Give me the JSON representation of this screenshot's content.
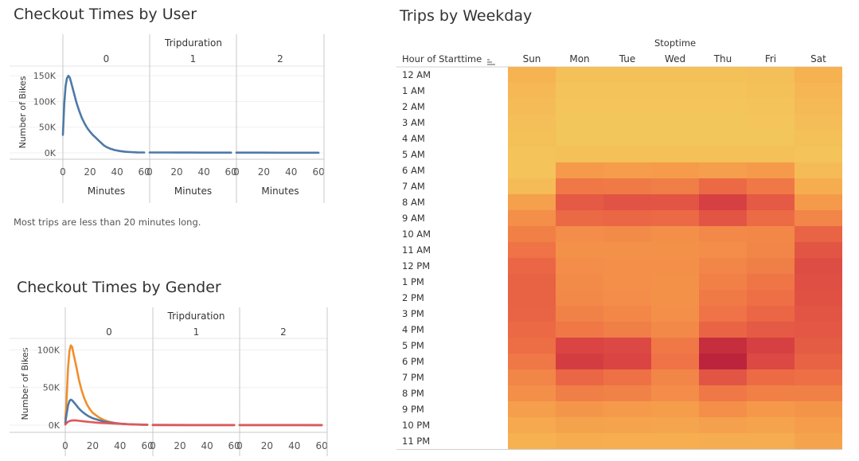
{
  "checkout_user": {
    "title": "Checkout Times by User",
    "note": "Most trips are less than 20 minutes long."
  },
  "checkout_gender": {
    "title": "Checkout Times by Gender"
  },
  "weekday": {
    "title": "Trips by Weekday",
    "column_group": "Stoptime",
    "row_header": "Hour of Starttime"
  },
  "colors": {
    "male": "#4e79a7",
    "female": "#f28e2b",
    "unknown": "#e15759",
    "grid": "#e6e6e6",
    "axis": "#c8c8c8"
  },
  "chart_data": [
    {
      "type": "line",
      "title": "Checkout Times by User",
      "column_header": "Tripduration",
      "panels": [
        "0",
        "1",
        "2"
      ],
      "xlabel": "Minutes",
      "ylabel": "Number of Bikes",
      "xticks": [
        0,
        20,
        40,
        60
      ],
      "yticks": [
        0,
        50000,
        100000,
        150000
      ],
      "ytick_labels": [
        "0K",
        "50K",
        "100K",
        "150K"
      ],
      "ylim": [
        0,
        158000
      ],
      "xlim": [
        0,
        64
      ],
      "series": [
        {
          "color": "#4e79a7",
          "panels": [
            [
              [
                0,
                35000
              ],
              [
                1,
                95000
              ],
              [
                2,
                130000
              ],
              [
                3,
                145000
              ],
              [
                4,
                150000
              ],
              [
                5,
                147000
              ],
              [
                6,
                138000
              ],
              [
                8,
                118000
              ],
              [
                10,
                98000
              ],
              [
                12,
                82000
              ],
              [
                14,
                68000
              ],
              [
                16,
                57000
              ],
              [
                18,
                48000
              ],
              [
                20,
                41000
              ],
              [
                22,
                35000
              ],
              [
                24,
                30000
              ],
              [
                26,
                25000
              ],
              [
                28,
                20000
              ],
              [
                30,
                15000
              ],
              [
                32,
                11500
              ],
              [
                35,
                8000
              ],
              [
                38,
                5500
              ],
              [
                42,
                3500
              ],
              [
                46,
                2200
              ],
              [
                50,
                1500
              ],
              [
                55,
                1000
              ],
              [
                60,
                700
              ]
            ],
            [
              [
                0,
                800
              ],
              [
                10,
                700
              ],
              [
                20,
                600
              ],
              [
                30,
                550
              ],
              [
                40,
                500
              ],
              [
                50,
                450
              ],
              [
                60,
                400
              ]
            ],
            [
              [
                0,
                500
              ],
              [
                10,
                450
              ],
              [
                20,
                400
              ],
              [
                30,
                380
              ],
              [
                40,
                350
              ],
              [
                50,
                330
              ],
              [
                60,
                300
              ]
            ]
          ]
        }
      ]
    },
    {
      "type": "line",
      "title": "Checkout Times by Gender",
      "column_header": "Tripduration",
      "panels": [
        "0",
        "1",
        "2"
      ],
      "ylabel": "Number of Bikes",
      "xticks": [
        0,
        20,
        40,
        60
      ],
      "yticks": [
        0,
        50000,
        100000
      ],
      "ytick_labels": [
        "0K",
        "50K",
        "100K"
      ],
      "ylim": [
        0,
        110000
      ],
      "xlim": [
        0,
        64
      ],
      "series": [
        {
          "color": "#f28e2b",
          "panels": [
            [
              [
                0,
                8000
              ],
              [
                1,
                35000
              ],
              [
                2,
                75000
              ],
              [
                3,
                98000
              ],
              [
                4,
                106000
              ],
              [
                5,
                104000
              ],
              [
                6,
                95000
              ],
              [
                8,
                78000
              ],
              [
                10,
                60000
              ],
              [
                12,
                46000
              ],
              [
                14,
                35000
              ],
              [
                16,
                27000
              ],
              [
                18,
                21000
              ],
              [
                20,
                16500
              ],
              [
                24,
                11000
              ],
              [
                28,
                7000
              ],
              [
                32,
                4500
              ],
              [
                36,
                3000
              ],
              [
                40,
                2000
              ],
              [
                45,
                1300
              ],
              [
                50,
                900
              ],
              [
                55,
                600
              ],
              [
                60,
                400
              ]
            ],
            [
              [
                0,
                300
              ],
              [
                30,
                250
              ],
              [
                60,
                200
              ]
            ],
            [
              [
                0,
                200
              ],
              [
                30,
                180
              ],
              [
                60,
                150
              ]
            ]
          ]
        },
        {
          "color": "#4e79a7",
          "panels": [
            [
              [
                0,
                3000
              ],
              [
                1,
                15000
              ],
              [
                2,
                26000
              ],
              [
                3,
                32000
              ],
              [
                4,
                34000
              ],
              [
                5,
                33000
              ],
              [
                6,
                31000
              ],
              [
                8,
                26500
              ],
              [
                10,
                22000
              ],
              [
                12,
                18500
              ],
              [
                14,
                15500
              ],
              [
                16,
                13000
              ],
              [
                18,
                11000
              ],
              [
                20,
                9200
              ],
              [
                24,
                7000
              ],
              [
                28,
                5000
              ],
              [
                32,
                3700
              ],
              [
                36,
                2800
              ],
              [
                40,
                2000
              ],
              [
                45,
                1400
              ],
              [
                50,
                1000
              ],
              [
                55,
                700
              ],
              [
                60,
                500
              ]
            ],
            [
              [
                0,
                300
              ],
              [
                30,
                250
              ],
              [
                60,
                200
              ]
            ],
            [
              [
                0,
                200
              ],
              [
                30,
                180
              ],
              [
                60,
                150
              ]
            ]
          ]
        },
        {
          "color": "#e15759",
          "panels": [
            [
              [
                0,
                1000
              ],
              [
                2,
                4500
              ],
              [
                4,
                6000
              ],
              [
                6,
                6500
              ],
              [
                8,
                6200
              ],
              [
                10,
                5800
              ],
              [
                14,
                5000
              ],
              [
                18,
                4200
              ],
              [
                22,
                3500
              ],
              [
                26,
                3000
              ],
              [
                30,
                2600
              ],
              [
                35,
                2200
              ],
              [
                40,
                1800
              ],
              [
                45,
                1400
              ],
              [
                50,
                1100
              ],
              [
                55,
                800
              ],
              [
                60,
                600
              ]
            ],
            [
              [
                0,
                100
              ],
              [
                60,
                80
              ]
            ],
            [
              [
                0,
                100
              ],
              [
                60,
                80
              ]
            ]
          ]
        }
      ]
    },
    {
      "type": "heatmap",
      "title": "Trips by Weekday",
      "column_header": "Stoptime",
      "row_header": "Hour of Starttime",
      "columns": [
        "Sun",
        "Mon",
        "Tue",
        "Wed",
        "Thu",
        "Fri",
        "Sat"
      ],
      "rows": [
        "12 AM",
        "1 AM",
        "2 AM",
        "3 AM",
        "4 AM",
        "5 AM",
        "6 AM",
        "7 AM",
        "8 AM",
        "9 AM",
        "10 AM",
        "11 AM",
        "12 PM",
        "1 PM",
        "2 PM",
        "3 PM",
        "4 PM",
        "5 PM",
        "6 PM",
        "7 PM",
        "8 PM",
        "9 PM",
        "10 PM",
        "11 PM"
      ],
      "scale_colors": [
        "#f1d362",
        "#f6b352",
        "#f59a4a",
        "#ee6f45",
        "#da4443",
        "#b8203b"
      ],
      "values": [
        [
          0.2,
          0.12,
          0.12,
          0.12,
          0.12,
          0.13,
          0.22
        ],
        [
          0.17,
          0.1,
          0.1,
          0.1,
          0.1,
          0.11,
          0.18
        ],
        [
          0.15,
          0.09,
          0.09,
          0.09,
          0.09,
          0.1,
          0.16
        ],
        [
          0.13,
          0.08,
          0.08,
          0.08,
          0.08,
          0.09,
          0.14
        ],
        [
          0.12,
          0.08,
          0.08,
          0.08,
          0.08,
          0.08,
          0.12
        ],
        [
          0.1,
          0.12,
          0.12,
          0.12,
          0.12,
          0.12,
          0.1
        ],
        [
          0.1,
          0.4,
          0.38,
          0.39,
          0.36,
          0.4,
          0.15
        ],
        [
          0.15,
          0.56,
          0.55,
          0.53,
          0.63,
          0.56,
          0.25
        ],
        [
          0.35,
          0.7,
          0.73,
          0.72,
          0.82,
          0.7,
          0.4
        ],
        [
          0.45,
          0.63,
          0.64,
          0.63,
          0.72,
          0.62,
          0.5
        ],
        [
          0.52,
          0.46,
          0.47,
          0.45,
          0.48,
          0.49,
          0.65
        ],
        [
          0.58,
          0.44,
          0.44,
          0.44,
          0.46,
          0.5,
          0.72
        ],
        [
          0.64,
          0.46,
          0.45,
          0.45,
          0.5,
          0.53,
          0.76
        ],
        [
          0.66,
          0.47,
          0.45,
          0.44,
          0.52,
          0.57,
          0.75
        ],
        [
          0.66,
          0.48,
          0.46,
          0.44,
          0.55,
          0.6,
          0.74
        ],
        [
          0.65,
          0.51,
          0.49,
          0.45,
          0.58,
          0.64,
          0.72
        ],
        [
          0.63,
          0.56,
          0.53,
          0.48,
          0.65,
          0.7,
          0.71
        ],
        [
          0.61,
          0.8,
          0.78,
          0.56,
          0.92,
          0.82,
          0.69
        ],
        [
          0.56,
          0.84,
          0.8,
          0.58,
          0.98,
          0.78,
          0.66
        ],
        [
          0.5,
          0.64,
          0.59,
          0.5,
          0.72,
          0.62,
          0.6
        ],
        [
          0.45,
          0.53,
          0.51,
          0.46,
          0.56,
          0.52,
          0.52
        ],
        [
          0.36,
          0.42,
          0.4,
          0.38,
          0.45,
          0.41,
          0.43
        ],
        [
          0.28,
          0.34,
          0.32,
          0.31,
          0.35,
          0.32,
          0.38
        ],
        [
          0.22,
          0.25,
          0.24,
          0.24,
          0.26,
          0.26,
          0.32
        ]
      ]
    }
  ]
}
